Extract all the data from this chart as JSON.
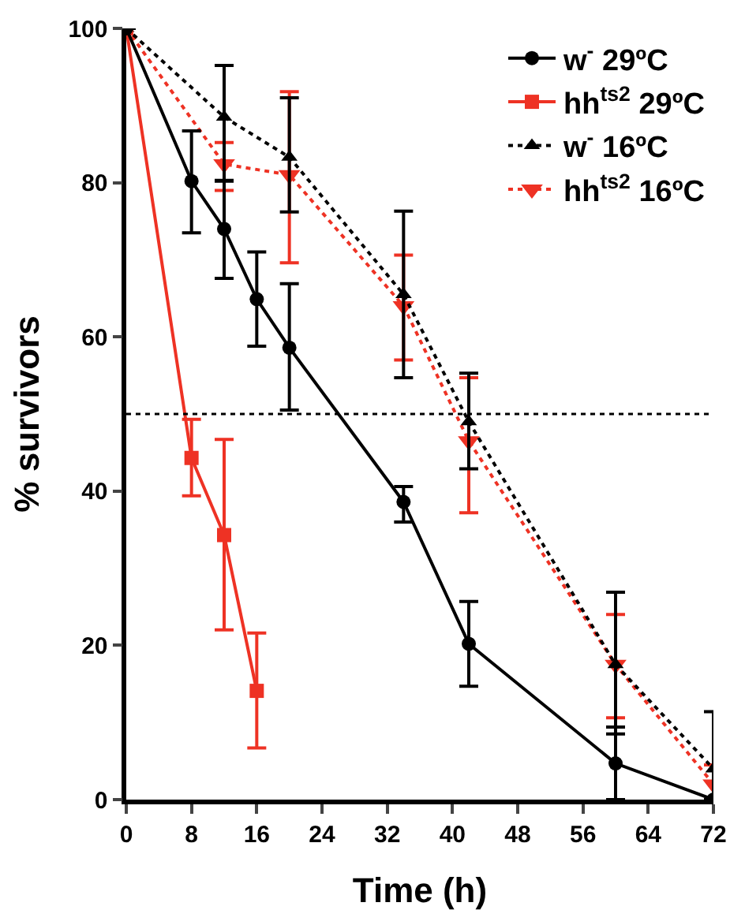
{
  "chart_data": {
    "type": "line",
    "xlabel": "Time (h)",
    "ylabel": "% survivors",
    "xlim": [
      0,
      72
    ],
    "xticks": [
      0,
      8,
      16,
      24,
      32,
      40,
      48,
      56,
      64,
      72
    ],
    "ylim": [
      0,
      100
    ],
    "yticks": [
      0,
      20,
      40,
      60,
      80,
      100
    ],
    "grid": false,
    "legend": "top right",
    "ref_lines": [
      {
        "axis": "y",
        "value": 50,
        "color": "#000000",
        "line_style": "dotted"
      }
    ],
    "series": [
      {
        "name": "w$^{-}$ 29ºC",
        "color": "#000000",
        "marker": "circle",
        "line_style": "solid",
        "x": [
          0,
          8,
          12,
          16,
          20,
          34,
          42,
          60,
          72
        ],
        "values": [
          100,
          80.2,
          74,
          64.9,
          58.6,
          38.6,
          20.2,
          4.7,
          0
        ],
        "errors": [
          null,
          [
            73.5,
            86.7
          ],
          [
            67.6,
            80.2
          ],
          [
            58.8,
            71
          ],
          [
            50.5,
            66.9
          ],
          [
            36,
            40.6
          ],
          [
            14.7,
            25.7
          ],
          [
            0,
            9.4
          ],
          null
        ]
      },
      {
        "name": "hh$^{ts2}$ 29ºC",
        "color": "#ee3224",
        "marker": "square",
        "line_style": "solid",
        "x": [
          0,
          8,
          12,
          16
        ],
        "values": [
          100,
          44.3,
          34.3,
          14.1
        ],
        "errors": [
          null,
          [
            39.4,
            49.3
          ],
          [
            22,
            46.7
          ],
          [
            6.7,
            21.6
          ]
        ]
      },
      {
        "name": "w$^{-}$ 16ºC",
        "color": "#000000",
        "marker": "triangle",
        "line_style": "dotted",
        "x": [
          0,
          12,
          20,
          34,
          42,
          60,
          72
        ],
        "values": [
          100,
          88.5,
          83.3,
          65.5,
          49,
          17.5,
          4
        ],
        "errors": [
          null,
          [
            80.3,
            95.2
          ],
          [
            76.2,
            91
          ],
          [
            54.7,
            76.3
          ],
          [
            42.9,
            55.3
          ],
          [
            8.5,
            26.9
          ],
          [
            0,
            11.4
          ]
        ]
      },
      {
        "name": "hh$^{ts2}$ 16ºC",
        "color": "#ee3224",
        "marker": "triangle",
        "line_style": "dotted",
        "x": [
          0,
          12,
          20,
          34,
          42,
          60,
          72
        ],
        "values": [
          100,
          82.4,
          81,
          64,
          46.5,
          17.5,
          2
        ],
        "errors": [
          null,
          [
            79,
            85.2
          ],
          [
            69.6,
            91.8
          ],
          [
            57,
            70.6
          ],
          [
            37.2,
            54.7
          ],
          [
            10.6,
            24
          ],
          [
            0,
            4.5
          ]
        ]
      }
    ]
  }
}
